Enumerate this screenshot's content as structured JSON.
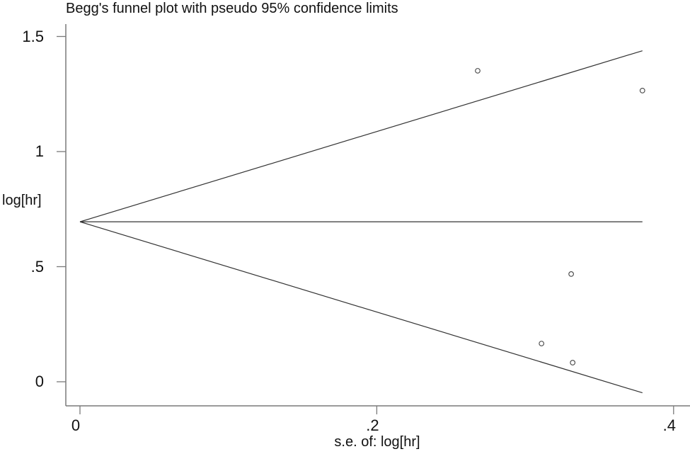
{
  "chart_data": {
    "type": "scatter",
    "title": "Begg's funnel plot with pseudo 95% confidence limits",
    "xlabel": "s.e. of: log[hr]",
    "ylabel": "log[hr]",
    "xlim": [
      0,
      0.4
    ],
    "ylim": [
      0,
      1.5
    ],
    "x_ticks": [
      "0",
      ".2",
      ".4"
    ],
    "x_tick_values": [
      0,
      0.2,
      0.4
    ],
    "y_ticks": [
      "0",
      ".5",
      "1",
      "1.5"
    ],
    "y_tick_values": [
      0,
      0.5,
      1,
      1.5
    ],
    "grid": false,
    "legend": null,
    "pooled_estimate": 0.695,
    "max_se": 0.379,
    "funnel_lines": {
      "center": [
        [
          0,
          0.695
        ],
        [
          0.379,
          0.695
        ]
      ],
      "upper": [
        [
          0,
          0.695
        ],
        [
          0.379,
          1.438
        ]
      ],
      "lower": [
        [
          0,
          0.695
        ],
        [
          0.379,
          -0.048
        ]
      ]
    },
    "points": [
      {
        "x": 0.268,
        "y": 1.351
      },
      {
        "x": 0.379,
        "y": 1.265
      },
      {
        "x": 0.331,
        "y": 0.468
      },
      {
        "x": 0.311,
        "y": 0.166
      },
      {
        "x": 0.332,
        "y": 0.083
      }
    ],
    "colors": {
      "axis": "#7a7a7a",
      "line": "#333333",
      "marker": "#444444"
    }
  }
}
